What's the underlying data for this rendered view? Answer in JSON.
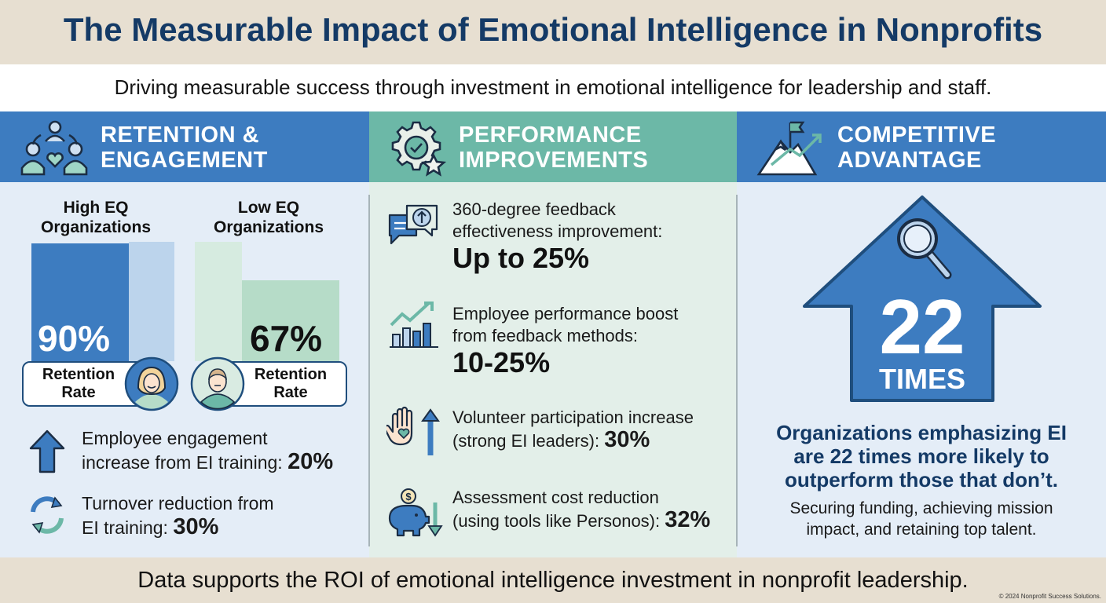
{
  "header": {
    "title": "The Measurable Impact of Emotional Intelligence in Nonprofits",
    "subtitle": "Driving measurable success through investment in emotional intelligence for leadership and staff."
  },
  "columns": {
    "retention": {
      "title_line1": "RETENTION &",
      "title_line2": "ENGAGEMENT",
      "icon": "people-heart-icon",
      "high_label_line1": "High EQ",
      "high_label_line2": "Organizations",
      "low_label_line1": "Low EQ",
      "low_label_line1b": "Low EQ",
      "low_label_line2": "Organizations",
      "high_value": "90%",
      "low_value": "67%",
      "high_fraction": 0.9,
      "low_fraction": 0.67,
      "pill_label_line1": "Retention",
      "pill_label_line2": "Rate",
      "engagement_line1": "Employee engagement",
      "engagement_line2": "increase from EI training:",
      "engagement_value": "20%",
      "turnover_line1": "Turnover reduction from",
      "turnover_line2": "EI training:",
      "turnover_value": "30%"
    },
    "performance": {
      "title_line1": "PERFORMANCE",
      "title_line2": "IMPROVEMENTS",
      "icon": "gear-check-star-icon",
      "items": [
        {
          "line1": "360-degree feedback",
          "line2": "effectiveness improvement:",
          "value": "Up to 25%",
          "icon": "speech-bubble-arrow-icon"
        },
        {
          "line1": "Employee performance boost",
          "line2": "from feedback methods:",
          "value": "10-25%",
          "icon": "bar-chart-growth-icon"
        },
        {
          "line1": "Volunteer participation increase",
          "line2": "(strong EI leaders):",
          "value": "30%",
          "icon": "hand-heart-icon"
        },
        {
          "line1": "Assessment cost reduction",
          "line2": "(using tools like Personos):",
          "value": "32%",
          "icon": "piggy-bank-icon"
        }
      ]
    },
    "advantage": {
      "title_line1": "COMPETITIVE",
      "title_line2": "ADVANTAGE",
      "icon": "mountain-flag-icon",
      "big_number": "22",
      "big_unit": "TIMES",
      "bold_line1": "Organizations emphasizing EI",
      "bold_line2": "are 22 times more likely to",
      "bold_line3": "outperform those that don’t.",
      "small_line1": "Securing funding, achieving mission",
      "small_line2": "impact, and retaining top talent."
    }
  },
  "footer": {
    "text": "Data supports the ROI of emotional intelligence investment in nonprofit leadership.",
    "copyright": "© 2024 Nonprofit Success Solutions."
  },
  "colors": {
    "navy": "#143a66",
    "blue": "#3d7cc0",
    "teal": "#6cb8a7",
    "light_blue": "#bcd4ec",
    "light_green": "#b6dcc8"
  }
}
